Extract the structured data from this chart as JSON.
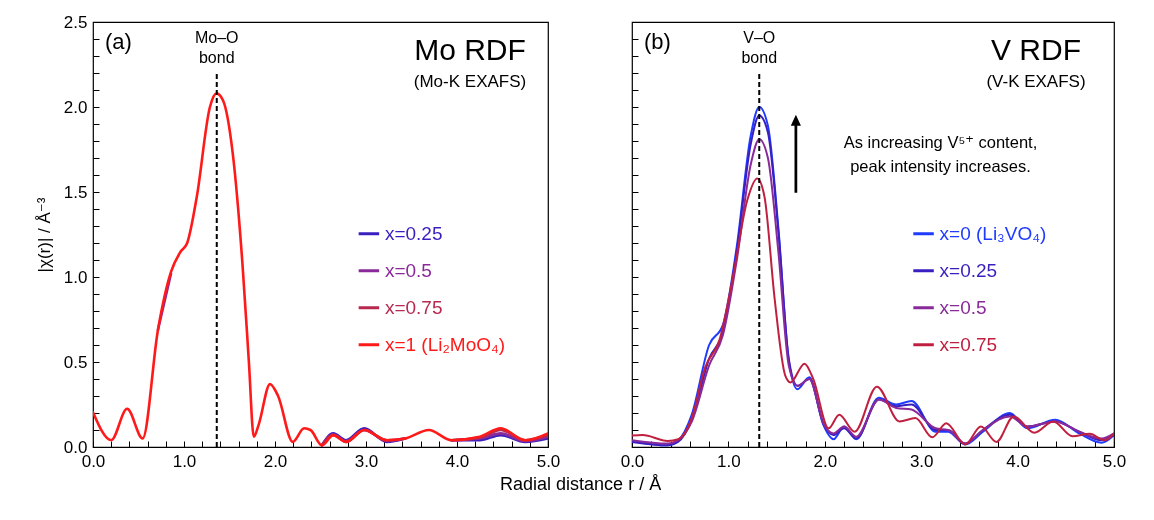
{
  "chart_data": [
    {
      "type": "line",
      "title": "Mo RDF",
      "subtitle": "(Mo-K EXAFS)",
      "xlabel": "Radial distance r / Å",
      "ylabel": "|χ(r)| / Å⁻³",
      "annotations": [
        "(a)"
      ],
      "legend": "right",
      "ref_lines": [
        {
          "axis": "x",
          "value": 1.36,
          "label": "Mo–O\nbond",
          "line_style": "dashed",
          "color": "#000000"
        }
      ],
      "xlim": [
        0,
        5
      ],
      "ylim": [
        0,
        2.5
      ],
      "xticks": [
        {
          "value": 0,
          "label": "0.0"
        },
        {
          "value": 0.2,
          "label": null
        },
        {
          "value": 0.4,
          "label": null
        },
        {
          "value": 0.6,
          "label": null
        },
        {
          "value": 0.8,
          "label": null
        },
        {
          "value": 1,
          "label": "1.0"
        },
        {
          "value": 1.2,
          "label": null
        },
        {
          "value": 1.4,
          "label": null
        },
        {
          "value": 1.6,
          "label": null
        },
        {
          "value": 1.8,
          "label": null
        },
        {
          "value": 2,
          "label": "2.0"
        },
        {
          "value": 2.2,
          "label": null
        },
        {
          "value": 2.4,
          "label": null
        },
        {
          "value": 2.6,
          "label": null
        },
        {
          "value": 2.8,
          "label": null
        },
        {
          "value": 3,
          "label": "3.0"
        },
        {
          "value": 3.2,
          "label": null
        },
        {
          "value": 3.4,
          "label": null
        },
        {
          "value": 3.6,
          "label": null
        },
        {
          "value": 3.8,
          "label": null
        },
        {
          "value": 4,
          "label": "4.0"
        },
        {
          "value": 4.2,
          "label": null
        },
        {
          "value": 4.4,
          "label": null
        },
        {
          "value": 4.6,
          "label": null
        },
        {
          "value": 4.8,
          "label": null
        },
        {
          "value": 5,
          "label": "5.0"
        }
      ],
      "yticks": [
        {
          "value": 0,
          "label": "0.0"
        },
        {
          "value": 0.1,
          "label": null
        },
        {
          "value": 0.2,
          "label": null
        },
        {
          "value": 0.3,
          "label": null
        },
        {
          "value": 0.4,
          "label": null
        },
        {
          "value": 0.5,
          "label": "0.5"
        },
        {
          "value": 0.6,
          "label": null
        },
        {
          "value": 0.7,
          "label": null
        },
        {
          "value": 0.8,
          "label": null
        },
        {
          "value": 0.9,
          "label": null
        },
        {
          "value": 1,
          "label": "1.0"
        },
        {
          "value": 1.1,
          "label": null
        },
        {
          "value": 1.2,
          "label": null
        },
        {
          "value": 1.3,
          "label": null
        },
        {
          "value": 1.4,
          "label": null
        },
        {
          "value": 1.5,
          "label": "1.5"
        },
        {
          "value": 1.6,
          "label": null
        },
        {
          "value": 1.7,
          "label": null
        },
        {
          "value": 1.8,
          "label": null
        },
        {
          "value": 1.9,
          "label": null
        },
        {
          "value": 2,
          "label": "2.0"
        },
        {
          "value": 2.1,
          "label": null
        },
        {
          "value": 2.2,
          "label": null
        },
        {
          "value": 2.3,
          "label": null
        },
        {
          "value": 2.4,
          "label": null
        },
        {
          "value": 2.5,
          "label": "2.5"
        }
      ],
      "x": [
        0,
        0.2,
        0.375,
        0.546,
        0.714,
        0.857,
        0.964,
        1.035,
        1.14,
        1.285,
        1.357,
        1.428,
        1.535,
        1.642,
        1.713,
        1.767,
        1.82,
        1.945,
        2.034,
        2.195,
        2.32,
        2.39,
        2.516,
        2.64,
        2.78,
        2.98,
        3.23,
        3.43,
        3.69,
        3.94,
        4.25,
        4.48,
        4.75,
        5.0
      ],
      "series": [
        {
          "name": "x=0.25",
          "color": "#3a1fc0",
          "values": [
            null,
            null,
            null,
            null,
            null,
            null,
            null,
            null,
            null,
            null,
            null,
            null,
            null,
            null,
            null,
            null,
            null,
            null,
            null,
            null,
            null,
            null,
            0.01,
            0.08,
            0.04,
            0.11,
            0.03,
            0.05,
            null,
            0.04,
            0.04,
            0.07,
            0.03,
            0.05
          ]
        },
        {
          "name": "x=0.5",
          "color": "#8a2a9a",
          "values": [
            null,
            null,
            null,
            null,
            0.69,
            1.02,
            null,
            null,
            null,
            null,
            null,
            null,
            null,
            null,
            null,
            null,
            null,
            null,
            null,
            null,
            null,
            null,
            0.01,
            0.075,
            0.035,
            0.1,
            0.035,
            0.05,
            null,
            0.04,
            0.05,
            0.08,
            0.035,
            0.06
          ]
        },
        {
          "name": "x=0.75",
          "color": "#b8284f",
          "values": [
            null,
            null,
            null,
            null,
            null,
            null,
            null,
            null,
            null,
            null,
            null,
            null,
            null,
            null,
            null,
            null,
            null,
            null,
            null,
            null,
            null,
            null,
            0.01,
            0.07,
            0.03,
            0.1,
            0.04,
            0.05,
            null,
            0.04,
            0.055,
            0.1,
            0.04,
            0.07
          ]
        },
        {
          "name": "x=1 (Li₂MoO₄)",
          "color": "#ff1a1a",
          "values": [
            0.205,
            0.04,
            0.225,
            0.05,
            0.69,
            1.03,
            1.15,
            1.2,
            1.47,
            2.0,
            2.08,
            2.04,
            1.73,
            1.08,
            0.5,
            0.06,
            0.13,
            0.37,
            0.3,
            0.03,
            0.11,
            0.1,
            0.01,
            0.07,
            0.03,
            0.1,
            0.04,
            0.05,
            0.1,
            0.04,
            0.06,
            0.11,
            0.04,
            0.08
          ]
        }
      ]
    },
    {
      "type": "line",
      "title": "V RDF",
      "subtitle": "(V-K EXAFS)",
      "annotations": [
        "(b)",
        "As increasing V⁵⁺ content,\npeak intensity increases."
      ],
      "legend": "right",
      "tick_labels": "x",
      "ref_lines": [
        {
          "axis": "x",
          "value": 1.32,
          "label": "V–O\nbond",
          "line_style": "dashed",
          "color": "#000000"
        }
      ],
      "xlim": [
        0,
        5
      ],
      "ylim": [
        0,
        2.5
      ],
      "xticks": [
        {
          "value": 0,
          "label": "0.0"
        },
        {
          "value": 0.2,
          "label": null
        },
        {
          "value": 0.4,
          "label": null
        },
        {
          "value": 0.6,
          "label": null
        },
        {
          "value": 0.8,
          "label": null
        },
        {
          "value": 1,
          "label": "1.0"
        },
        {
          "value": 1.2,
          "label": null
        },
        {
          "value": 1.4,
          "label": null
        },
        {
          "value": 1.6,
          "label": null
        },
        {
          "value": 1.8,
          "label": null
        },
        {
          "value": 2,
          "label": "2.0"
        },
        {
          "value": 2.2,
          "label": null
        },
        {
          "value": 2.4,
          "label": null
        },
        {
          "value": 2.6,
          "label": null
        },
        {
          "value": 2.8,
          "label": null
        },
        {
          "value": 3,
          "label": "3.0"
        },
        {
          "value": 3.2,
          "label": null
        },
        {
          "value": 3.4,
          "label": null
        },
        {
          "value": 3.6,
          "label": null
        },
        {
          "value": 3.8,
          "label": null
        },
        {
          "value": 4,
          "label": "4.0"
        },
        {
          "value": 4.2,
          "label": null
        },
        {
          "value": 4.4,
          "label": null
        },
        {
          "value": 4.6,
          "label": null
        },
        {
          "value": 4.8,
          "label": null
        },
        {
          "value": 5,
          "label": "5.0"
        }
      ],
      "yticks": [
        0,
        0.1,
        0.2,
        0.3,
        0.4,
        0.5,
        0.6,
        0.7,
        0.8,
        0.9,
        1,
        1.1,
        1.2,
        1.3,
        1.4,
        1.5,
        1.6,
        1.7,
        1.8,
        1.9,
        2,
        2.1,
        2.2,
        2.3,
        2.4,
        2.5
      ],
      "series": [
        {
          "name": "x=0 (Li₃VO₄)",
          "color": "#1f3bff",
          "x": [
            0,
            0.37,
            0.477,
            0.62,
            0.8,
            0.944,
            1.087,
            1.231,
            1.32,
            1.41,
            1.518,
            1.626,
            1.716,
            1.84,
            1.985,
            2.09,
            2.2,
            2.326,
            2.56,
            2.74,
            2.9,
            3.15,
            3.28,
            3.456,
            3.64,
            3.92,
            4.1,
            4.39,
            4.64,
            4.87,
            5.0
          ],
          "values": [
            0.036,
            0.01,
            0.036,
            0.19,
            0.6,
            0.72,
            1.18,
            1.83,
            2.0,
            1.89,
            1.29,
            0.51,
            0.34,
            0.41,
            0.13,
            0.046,
            0.12,
            0.046,
            0.29,
            0.25,
            0.27,
            0.09,
            0.09,
            0.015,
            0.09,
            0.2,
            0.11,
            0.16,
            0.08,
            0.025,
            0.07
          ]
        },
        {
          "name": "x=0.25",
          "color": "#3a1fc0",
          "x": [
            0,
            0.37,
            0.477,
            0.62,
            0.8,
            0.944,
            1.087,
            1.231,
            1.32,
            1.41,
            1.518,
            1.626,
            1.716,
            1.84,
            1.985,
            2.09,
            2.2,
            2.326,
            2.56,
            2.74,
            2.9,
            3.15,
            3.28,
            3.456,
            3.64,
            3.92,
            4.1,
            4.39,
            4.64,
            4.87,
            5.0
          ],
          "values": [
            0.03,
            0.01,
            0.03,
            0.16,
            0.52,
            0.68,
            1.15,
            1.78,
            1.95,
            1.85,
            1.27,
            0.52,
            0.36,
            0.4,
            0.14,
            0.07,
            0.11,
            0.05,
            0.28,
            0.24,
            0.25,
            0.1,
            0.1,
            0.02,
            0.1,
            0.19,
            0.12,
            0.15,
            0.09,
            0.04,
            0.07
          ]
        },
        {
          "name": "x=0.5",
          "color": "#8a2a9a",
          "x": [
            0,
            0.37,
            0.477,
            0.62,
            0.8,
            0.944,
            1.087,
            1.231,
            1.32,
            1.41,
            1.518,
            1.626,
            1.716,
            1.84,
            1.985,
            2.09,
            2.2,
            2.326,
            2.56,
            2.74,
            2.9,
            3.15,
            3.28,
            3.456,
            3.64,
            3.92,
            4.1,
            4.39,
            4.64,
            4.87,
            5.0
          ],
          "values": [
            0.04,
            0.02,
            0.04,
            0.15,
            0.48,
            0.66,
            1.1,
            1.66,
            1.81,
            1.7,
            1.15,
            0.48,
            0.36,
            0.4,
            0.14,
            0.08,
            0.12,
            0.06,
            0.28,
            0.23,
            0.22,
            0.11,
            0.1,
            0.02,
            0.1,
            0.18,
            0.12,
            0.15,
            0.09,
            0.05,
            0.08
          ]
        },
        {
          "name": "x=0.75",
          "color": "#c0203f",
          "x": [
            0,
            0.11,
            0.37,
            0.48,
            0.62,
            0.76,
            0.908,
            1.05,
            1.195,
            1.3,
            1.375,
            1.48,
            1.59,
            1.644,
            1.79,
            1.88,
            2.04,
            2.15,
            2.31,
            2.54,
            2.775,
            2.94,
            3.115,
            3.26,
            3.456,
            3.62,
            3.78,
            3.96,
            4.175,
            4.37,
            4.57,
            4.75,
            4.9,
            5.0
          ],
          "values": [
            0.067,
            0.07,
            0.036,
            0.046,
            0.17,
            0.47,
            0.63,
            1.01,
            1.45,
            1.58,
            1.47,
            0.87,
            0.42,
            0.38,
            0.49,
            0.4,
            0.11,
            0.19,
            0.09,
            0.355,
            0.15,
            0.17,
            0.057,
            0.14,
            0.015,
            0.12,
            0.03,
            0.18,
            0.084,
            0.15,
            0.063,
            0.078,
            0.04,
            0.078
          ]
        }
      ]
    }
  ]
}
